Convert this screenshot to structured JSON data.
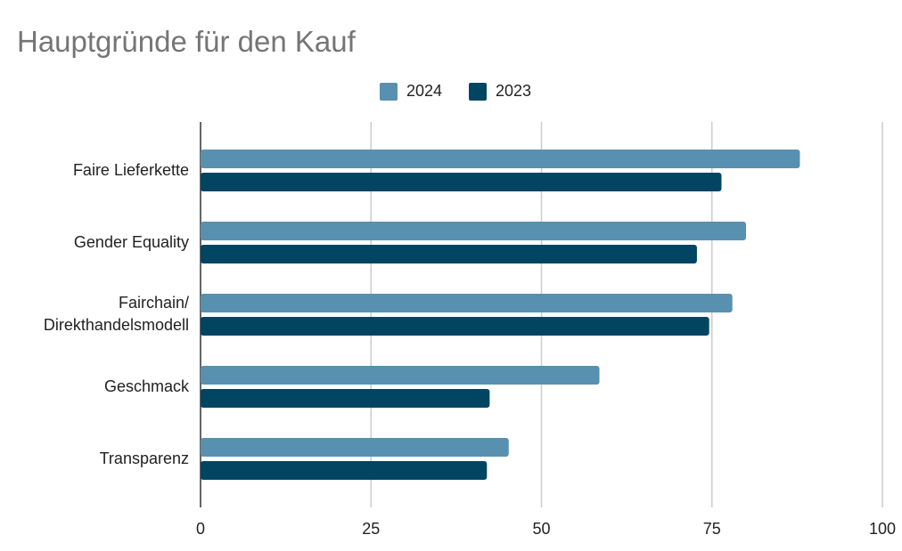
{
  "chart_data": {
    "type": "bar",
    "orientation": "horizontal",
    "title": "Hauptgründe für den Kauf",
    "categories": [
      "Faire Lieferkette",
      "Gender Equality",
      "Fairchain/ Direkthandelsmodell",
      "Geschmack",
      "Transparenz"
    ],
    "series": [
      {
        "name": "2024",
        "color": "#5890b0",
        "values": [
          87.9,
          80.0,
          78.0,
          58.5,
          45.2
        ]
      },
      {
        "name": "2023",
        "color": "#024562",
        "values": [
          76.4,
          72.8,
          74.6,
          42.4,
          42.0
        ]
      }
    ],
    "xlim": [
      0,
      100
    ],
    "xticks": [
      "0",
      "25",
      "50",
      "75",
      "100"
    ],
    "xticks_values": [
      0,
      25,
      50,
      75,
      100
    ],
    "grid": true,
    "legend_position": "top"
  }
}
